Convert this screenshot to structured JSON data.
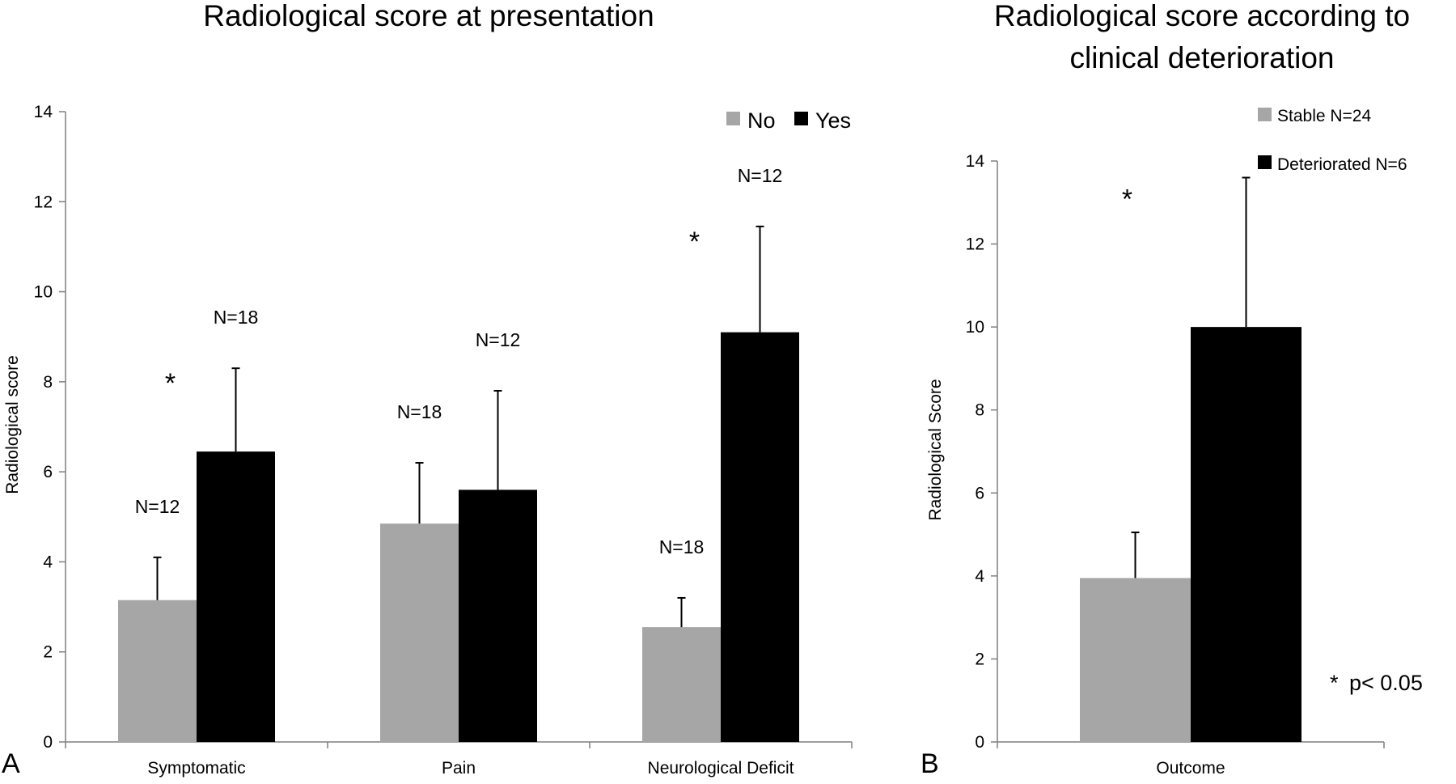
{
  "colors": {
    "no": "#a6a6a6",
    "yes": "#000000",
    "axis": "#7f7f7f"
  },
  "chart_data": [
    {
      "type": "bar",
      "panel_letter": "A",
      "title": "Radiological score at presentation",
      "xlabel": "",
      "ylabel": "Radiological score",
      "ylim": [
        0,
        14
      ],
      "yticks": [
        "0",
        "2",
        "4",
        "6",
        "8",
        "10",
        "12",
        "14"
      ],
      "grid": false,
      "legend_position": "top-right",
      "categories": [
        "Symptomatic",
        "Pain",
        "Neurological Deficit"
      ],
      "series": [
        {
          "name": "No",
          "color_key": "no",
          "values": [
            3.15,
            4.85,
            2.55
          ],
          "error": [
            0.95,
            1.35,
            0.65
          ],
          "n_labels": [
            "N=12",
            "N=18",
            "N=18"
          ]
        },
        {
          "name": "Yes",
          "color_key": "yes",
          "values": [
            6.45,
            5.6,
            9.1
          ],
          "error": [
            1.85,
            2.2,
            2.35
          ],
          "n_labels": [
            "N=18",
            "N=12",
            "N=12"
          ]
        }
      ],
      "significance": [
        "*",
        "",
        "*"
      ]
    },
    {
      "type": "bar",
      "panel_letter": "B",
      "title": [
        "Radiological score according to",
        "clinical deterioration"
      ],
      "xlabel": "",
      "ylabel": "Radiological Score",
      "ylim": [
        0,
        14
      ],
      "yticks": [
        "0",
        "2",
        "4",
        "6",
        "8",
        "10",
        "12",
        "14"
      ],
      "grid": false,
      "legend_position": "top-right",
      "categories": [
        "Outcome"
      ],
      "series": [
        {
          "name": "Stable N=24",
          "color_key": "no",
          "values": [
            3.95
          ],
          "error": [
            1.1
          ]
        },
        {
          "name": "Deteriorated N=6",
          "color_key": "yes",
          "values": [
            10.0
          ],
          "error": [
            3.6
          ]
        }
      ],
      "significance": [
        "*"
      ],
      "annotation": {
        "symbol": "*",
        "text": "p< 0.05"
      }
    }
  ]
}
